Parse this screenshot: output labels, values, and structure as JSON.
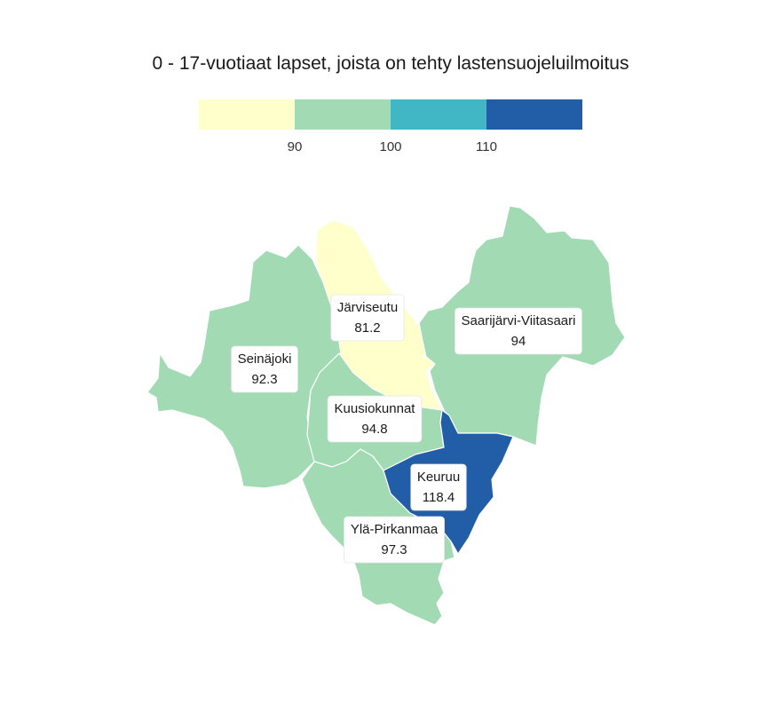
{
  "title": "0 - 17-vuotiaat lapset, joista on tehty lastensuojeluilmoitus",
  "legend": {
    "ticks": [
      "90",
      "100",
      "110"
    ],
    "colors": [
      "#ffffcc",
      "#a2dab3",
      "#41b6c4",
      "#225ea8"
    ]
  },
  "chart_data": {
    "type": "choropleth",
    "title": "0 - 17-vuotiaat lapset, joista on tehty lastensuojeluilmoitus",
    "breaks": [
      90,
      100,
      110
    ],
    "regions": [
      {
        "name": "Järviseutu",
        "value": "81.2",
        "color": "#ffffcc"
      },
      {
        "name": "Seinäjoki",
        "value": "92.3",
        "color": "#a2dab3"
      },
      {
        "name": "Saarijärvi-Viitasaari",
        "value": "94",
        "color": "#a2dab3"
      },
      {
        "name": "Kuusiokunnat",
        "value": "94.8",
        "color": "#a2dab3"
      },
      {
        "name": "Ylä-Pirkanmaa",
        "value": "97.3",
        "color": "#a2dab3"
      },
      {
        "name": "Keuruu",
        "value": "118.4",
        "color": "#225ea8"
      }
    ]
  }
}
